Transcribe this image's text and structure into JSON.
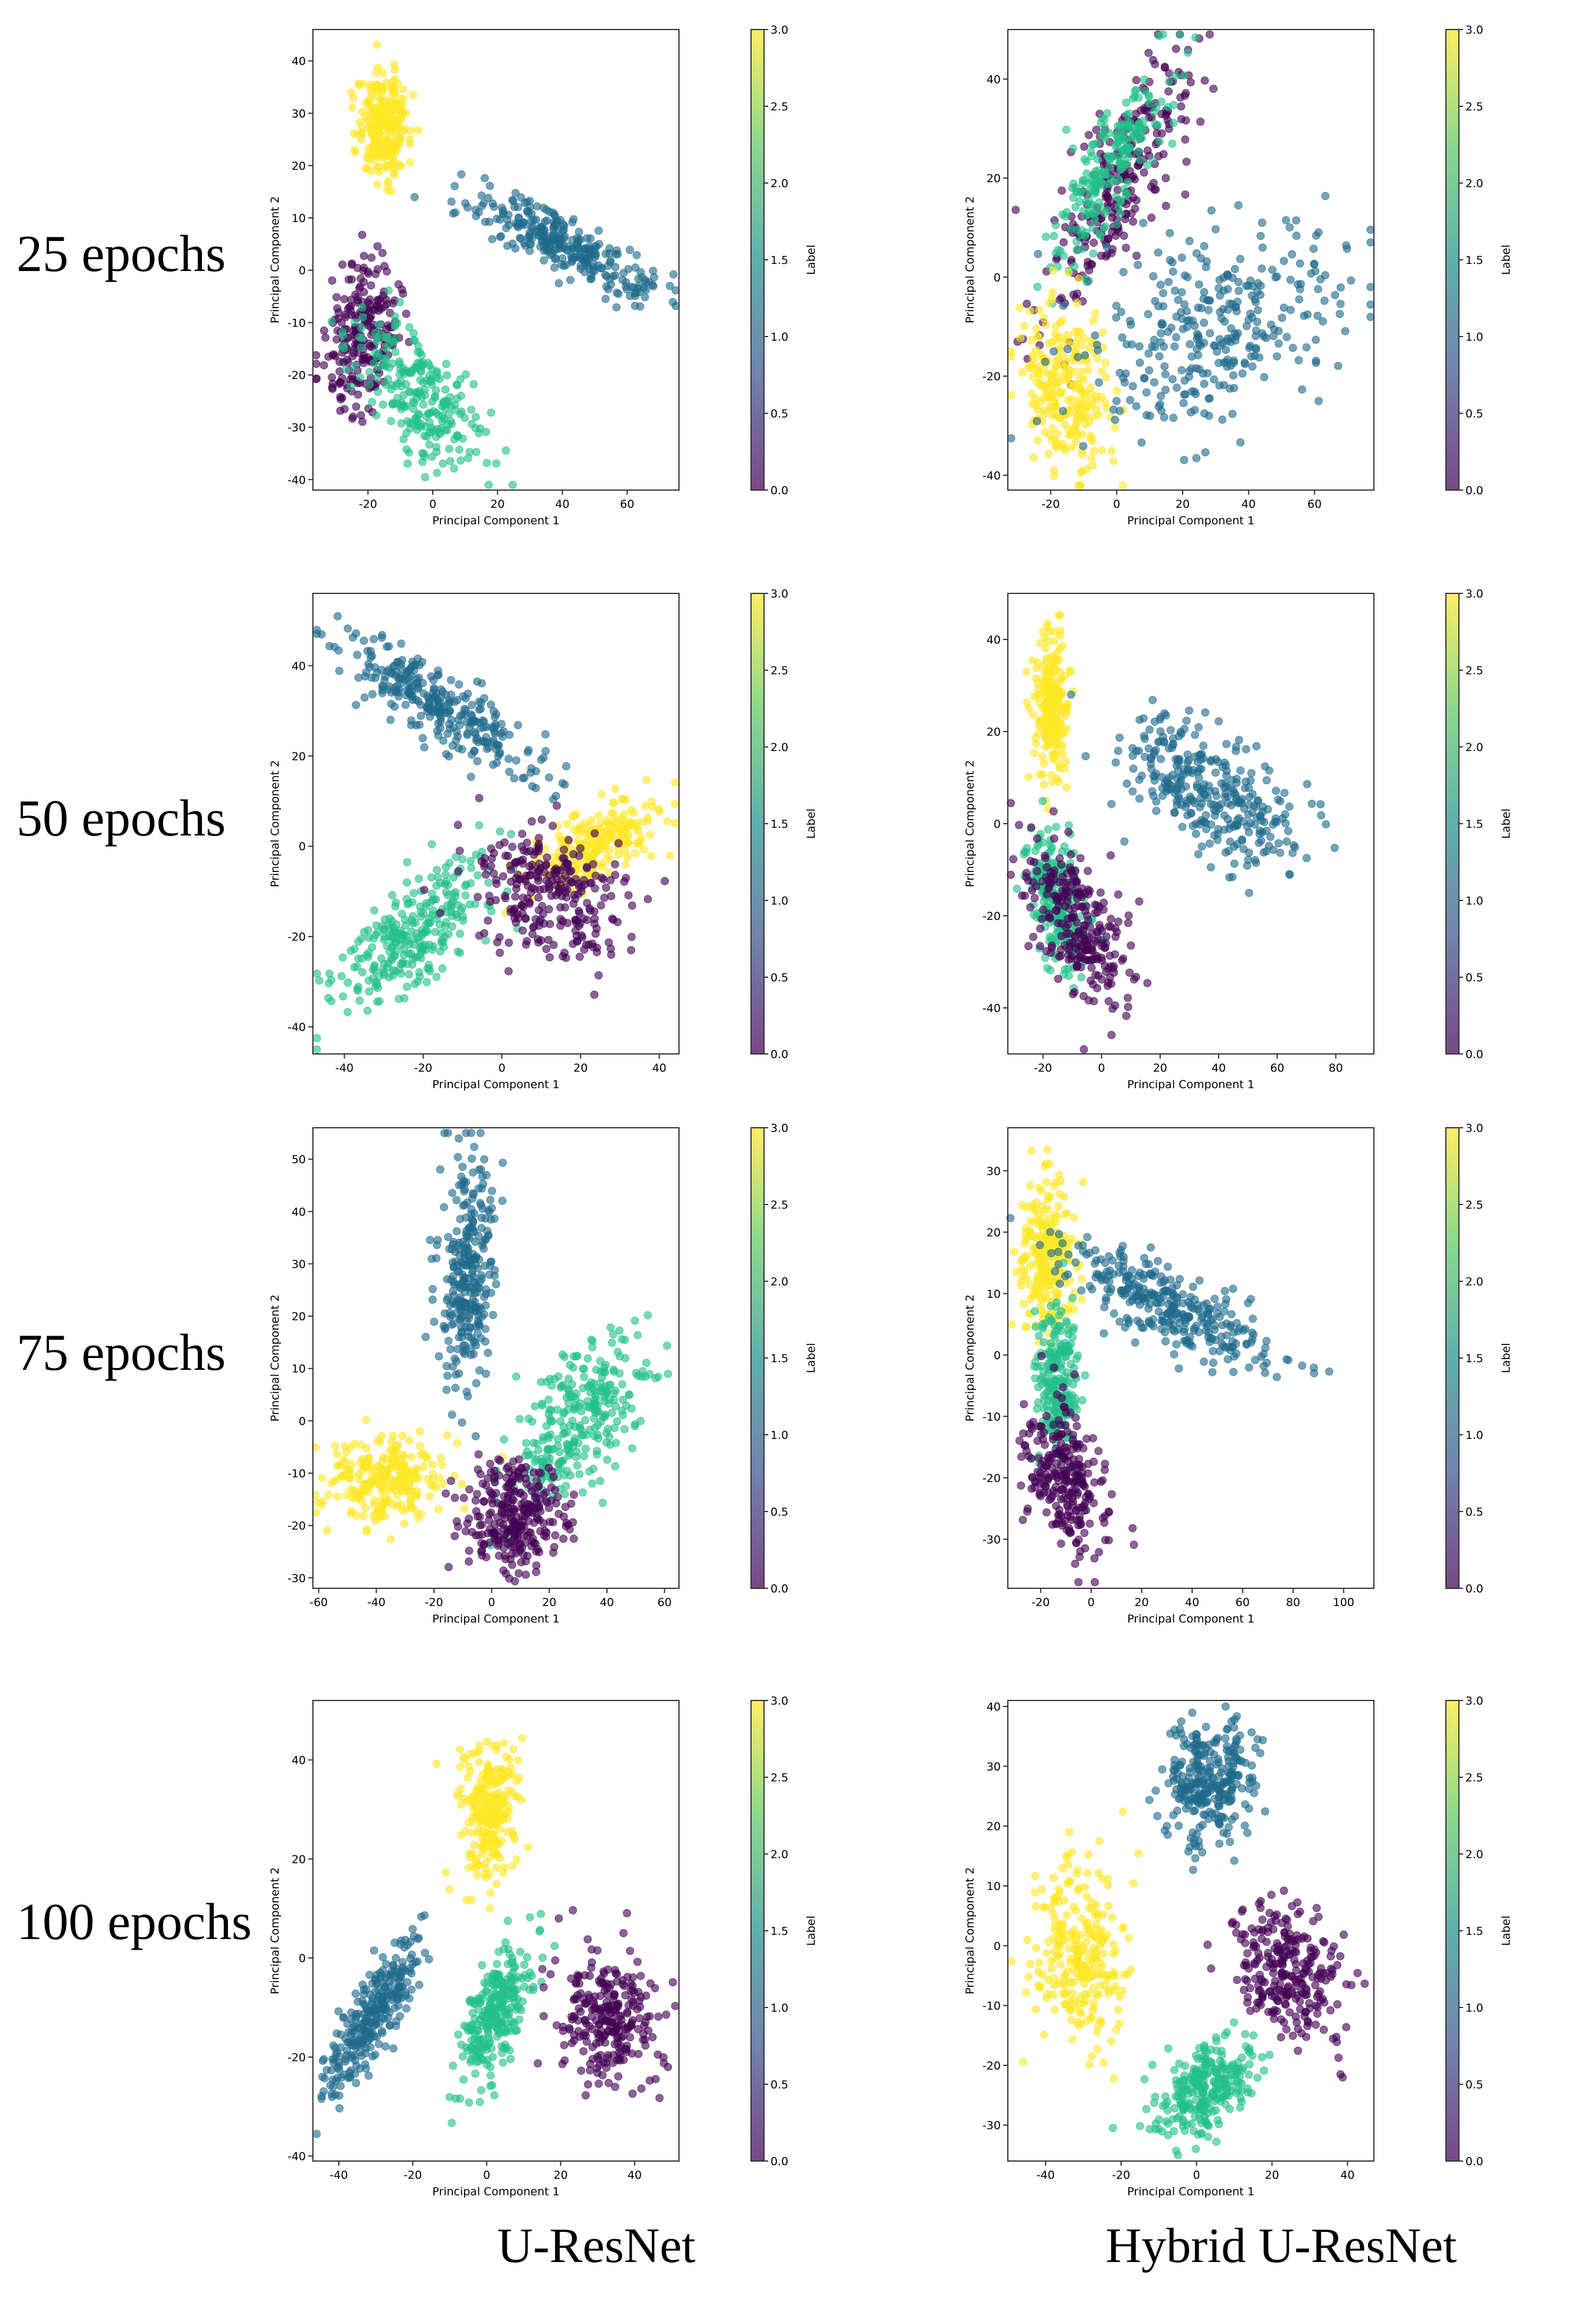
{
  "row_labels": [
    "25 epochs",
    "50 epochs",
    "75 epochs",
    "100 epochs"
  ],
  "column_labels": [
    "U-ResNet",
    "Hybrid U-ResNet"
  ],
  "colors": {
    "0": "#440154",
    "1": "#1f6a8c",
    "2": "#22c08a",
    "3": "#fde725"
  },
  "chart_data": [
    {
      "type": "scatter",
      "row": 0,
      "col": 0,
      "xlabel": "Principal Component 1",
      "ylabel": "Principal Component 2",
      "xlim": [
        -37,
        76
      ],
      "ylim": [
        -42,
        46
      ],
      "xticks": [
        -20,
        0,
        20,
        40,
        60
      ],
      "yticks": [
        -40,
        -30,
        -20,
        -10,
        0,
        10,
        20,
        30,
        40
      ],
      "colorbar": {
        "label": "Label",
        "range": [
          0,
          3
        ],
        "ticks": [
          0,
          0.5,
          1,
          1.5,
          2,
          2.5,
          3
        ]
      },
      "clusters": [
        {
          "label": 3,
          "cx": -15,
          "cy": 28,
          "sx": 4,
          "sy": 5,
          "rho": 0.0,
          "n": 260
        },
        {
          "label": 1,
          "cx": 40,
          "cy": 5,
          "sx": 14,
          "sy": 5,
          "rho": -0.85,
          "n": 300
        },
        {
          "label": 0,
          "cx": -22,
          "cy": -12,
          "sx": 6,
          "sy": 7,
          "rho": 0.3,
          "n": 230
        },
        {
          "label": 2,
          "cx": -4,
          "cy": -24,
          "sx": 10,
          "sy": 7,
          "rho": -0.6,
          "n": 250
        }
      ]
    },
    {
      "type": "scatter",
      "row": 0,
      "col": 1,
      "xlabel": "Principal Component 1",
      "ylabel": "Principal Component 2",
      "xlim": [
        -33,
        78
      ],
      "ylim": [
        -43,
        50
      ],
      "xticks": [
        -20,
        0,
        20,
        40,
        60
      ],
      "yticks": [
        -40,
        -20,
        0,
        20,
        40
      ],
      "colorbar": {
        "label": "Label",
        "range": [
          0,
          3
        ],
        "ticks": [
          0,
          0.5,
          1,
          1.5,
          2,
          2.5,
          3
        ]
      },
      "clusters": [
        {
          "label": 0,
          "cx": 0,
          "cy": 18,
          "sx": 11,
          "sy": 13,
          "rho": 0.75,
          "n": 260
        },
        {
          "label": 2,
          "cx": -2,
          "cy": 22,
          "sx": 9,
          "sy": 10,
          "rho": 0.8,
          "n": 220
        },
        {
          "label": 3,
          "cx": -16,
          "cy": -22,
          "sx": 7,
          "sy": 8,
          "rho": -0.3,
          "n": 260
        },
        {
          "label": 1,
          "cx": 30,
          "cy": -10,
          "sx": 20,
          "sy": 10,
          "rho": 0.35,
          "n": 320
        }
      ]
    },
    {
      "type": "scatter",
      "row": 1,
      "col": 0,
      "xlabel": "Principal Component 1",
      "ylabel": "Principal Component 2",
      "xlim": [
        -48,
        45
      ],
      "ylim": [
        -46,
        56
      ],
      "xticks": [
        -40,
        -20,
        0,
        20,
        40
      ],
      "yticks": [
        -40,
        -20,
        0,
        20,
        40
      ],
      "colorbar": {
        "label": "Label",
        "range": [
          0,
          3
        ],
        "ticks": [
          0,
          0.5,
          1,
          1.5,
          2,
          2.5,
          3
        ]
      },
      "clusters": [
        {
          "label": 1,
          "cx": -16,
          "cy": 31,
          "sx": 13,
          "sy": 8,
          "rho": -0.85,
          "n": 300
        },
        {
          "label": 2,
          "cx": -22,
          "cy": -20,
          "sx": 11,
          "sy": 9,
          "rho": 0.75,
          "n": 280
        },
        {
          "label": 3,
          "cx": 25,
          "cy": 1,
          "sx": 8,
          "sy": 5,
          "rho": 0.6,
          "n": 230
        },
        {
          "label": 0,
          "cx": 13,
          "cy": -10,
          "sx": 9,
          "sy": 7,
          "rho": -0.2,
          "n": 270
        }
      ]
    },
    {
      "type": "scatter",
      "row": 1,
      "col": 1,
      "xlabel": "Principal Component 1",
      "ylabel": "Principal Component 2",
      "xlim": [
        -32,
        93
      ],
      "ylim": [
        -50,
        50
      ],
      "xticks": [
        -20,
        0,
        20,
        40,
        60,
        80
      ],
      "yticks": [
        -40,
        -20,
        0,
        20,
        40
      ],
      "colorbar": {
        "label": "Label",
        "range": [
          0,
          3
        ],
        "ticks": [
          0,
          0.5,
          1,
          1.5,
          2,
          2.5,
          3
        ]
      },
      "clusters": [
        {
          "label": 3,
          "cx": -17,
          "cy": 26,
          "sx": 3,
          "sy": 8,
          "rho": 0.0,
          "n": 230
        },
        {
          "label": 1,
          "cx": 38,
          "cy": 7,
          "sx": 15,
          "sy": 8,
          "rho": -0.6,
          "n": 320
        },
        {
          "label": 2,
          "cx": -16,
          "cy": -16,
          "sx": 5,
          "sy": 8,
          "rho": -0.5,
          "n": 220
        },
        {
          "label": 0,
          "cx": -8,
          "cy": -22,
          "sx": 9,
          "sy": 9,
          "rho": -0.6,
          "n": 260
        }
      ]
    },
    {
      "type": "scatter",
      "row": 2,
      "col": 0,
      "xlabel": "Principal Component 1",
      "ylabel": "Principal Component 2",
      "xlim": [
        -62,
        65
      ],
      "ylim": [
        -32,
        56
      ],
      "xticks": [
        -60,
        -40,
        -20,
        0,
        20,
        40,
        60
      ],
      "yticks": [
        -30,
        -20,
        -10,
        0,
        10,
        20,
        30,
        40,
        50
      ],
      "colorbar": {
        "label": "Label",
        "range": [
          0,
          3
        ],
        "ticks": [
          0,
          0.5,
          1,
          1.5,
          2,
          2.5,
          3
        ]
      },
      "clusters": [
        {
          "label": 1,
          "cx": -8,
          "cy": 27,
          "sx": 5,
          "sy": 11,
          "rho": 0.2,
          "n": 300
        },
        {
          "label": 3,
          "cx": -37,
          "cy": -11,
          "sx": 10,
          "sy": 4,
          "rho": 0.1,
          "n": 260
        },
        {
          "label": 2,
          "cx": 30,
          "cy": 0,
          "sx": 12,
          "sy": 8,
          "rho": 0.6,
          "n": 280
        },
        {
          "label": 0,
          "cx": 8,
          "cy": -18,
          "sx": 9,
          "sy": 5,
          "rho": -0.1,
          "n": 280
        }
      ]
    },
    {
      "type": "scatter",
      "row": 2,
      "col": 1,
      "xlabel": "Principal Component 1",
      "ylabel": "Principal Component 2",
      "xlim": [
        -33,
        112
      ],
      "ylim": [
        -38,
        37
      ],
      "xticks": [
        -20,
        0,
        20,
        40,
        60,
        80,
        100
      ],
      "yticks": [
        -30,
        -20,
        -10,
        0,
        10,
        20,
        30
      ],
      "colorbar": {
        "label": "Label",
        "range": [
          0,
          3
        ],
        "ticks": [
          0,
          0.5,
          1,
          1.5,
          2,
          2.5,
          3
        ]
      },
      "clusters": [
        {
          "label": 3,
          "cx": -18,
          "cy": 16,
          "sx": 5,
          "sy": 6,
          "rho": 0.0,
          "n": 250
        },
        {
          "label": 1,
          "cx": 30,
          "cy": 8,
          "sx": 22,
          "sy": 5,
          "rho": -0.8,
          "n": 320
        },
        {
          "label": 2,
          "cx": -13,
          "cy": -4,
          "sx": 4,
          "sy": 6,
          "rho": 0.0,
          "n": 220
        },
        {
          "label": 0,
          "cx": -10,
          "cy": -20,
          "sx": 8,
          "sy": 6,
          "rho": -0.4,
          "n": 260
        }
      ]
    },
    {
      "type": "scatter",
      "row": 3,
      "col": 0,
      "xlabel": "Principal Component 1",
      "ylabel": "Principal Component 2",
      "xlim": [
        -47,
        52
      ],
      "ylim": [
        -41,
        52
      ],
      "xticks": [
        -40,
        -20,
        0,
        20,
        40
      ],
      "yticks": [
        -40,
        -20,
        0,
        20,
        40
      ],
      "colorbar": {
        "label": "Label",
        "range": [
          0,
          3
        ],
        "ticks": [
          0,
          0.5,
          1,
          1.5,
          2,
          2.5,
          3
        ]
      },
      "clusters": [
        {
          "label": 3,
          "cx": 0,
          "cy": 30,
          "sx": 4,
          "sy": 7,
          "rho": 0.0,
          "n": 260
        },
        {
          "label": 1,
          "cx": -31,
          "cy": -12,
          "sx": 7,
          "sy": 8,
          "rho": 0.85,
          "n": 290
        },
        {
          "label": 2,
          "cx": 2,
          "cy": -11,
          "sx": 5,
          "sy": 7,
          "rho": 0.55,
          "n": 270
        },
        {
          "label": 0,
          "cx": 33,
          "cy": -12,
          "sx": 7,
          "sy": 7,
          "rho": -0.1,
          "n": 260
        }
      ]
    },
    {
      "type": "scatter",
      "row": 3,
      "col": 1,
      "xlabel": "Principal Component 1",
      "ylabel": "Principal Component 2",
      "xlim": [
        -50,
        47
      ],
      "ylim": [
        -36,
        41
      ],
      "xticks": [
        -40,
        -20,
        0,
        20,
        40
      ],
      "yticks": [
        -30,
        -20,
        -10,
        0,
        10,
        20,
        30,
        40
      ],
      "colorbar": {
        "label": "Label",
        "range": [
          0,
          3
        ],
        "ticks": [
          0,
          0.5,
          1,
          1.5,
          2,
          2.5,
          3
        ]
      },
      "clusters": [
        {
          "label": 1,
          "cx": 3,
          "cy": 27,
          "sx": 6,
          "sy": 5,
          "rho": 0.1,
          "n": 290
        },
        {
          "label": 3,
          "cx": -31,
          "cy": -1,
          "sx": 6,
          "sy": 8,
          "rho": 0.0,
          "n": 270
        },
        {
          "label": 0,
          "cx": 24,
          "cy": -4,
          "sx": 7,
          "sy": 6,
          "rho": -0.3,
          "n": 270
        },
        {
          "label": 2,
          "cx": 2,
          "cy": -24,
          "sx": 6,
          "sy": 4,
          "rho": 0.5,
          "n": 270
        }
      ]
    }
  ]
}
